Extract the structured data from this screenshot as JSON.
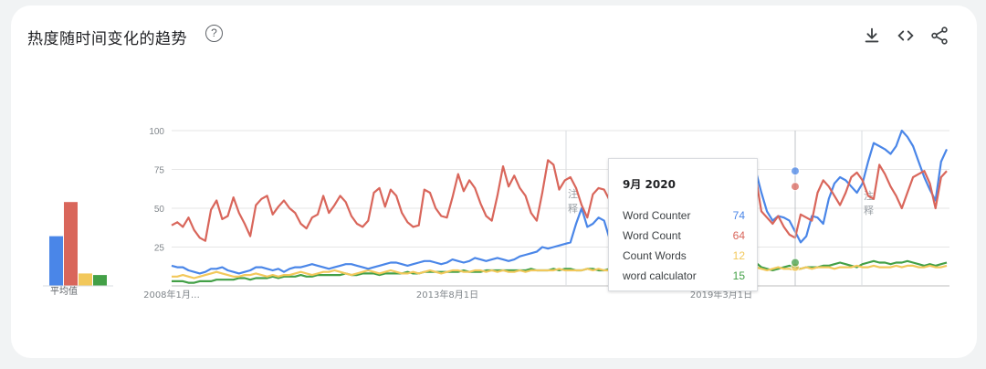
{
  "header": {
    "title": "热度随时间变化的趋势",
    "help_glyph": "?",
    "icons": [
      "download-icon",
      "embed-code-icon",
      "share-icon"
    ]
  },
  "colors": {
    "word_counter": "#4a86e8",
    "word_count": "#d9665b",
    "count_words": "#f2c85b",
    "word_calculator": "#43a047",
    "grid": "#e6e6e6",
    "axis_text": "#80868b"
  },
  "averages": {
    "label": "平均值",
    "values": [
      32,
      54,
      8,
      7
    ]
  },
  "chart_data": {
    "type": "line",
    "x_range": [
      "2008-01",
      "2022-08"
    ],
    "ylim": [
      0,
      100
    ],
    "yticks": [
      25,
      50,
      75,
      100
    ],
    "x_tick_labels": [
      "2008年1月…",
      "2013年8月1日",
      "2019年3月1日"
    ],
    "annotation_marker_label": "注释",
    "series": [
      {
        "name": "Word Counter",
        "key": "word_counter",
        "values": [
          13,
          12,
          12,
          10,
          9,
          8,
          9,
          11,
          11,
          12,
          10,
          9,
          8,
          9,
          10,
          12,
          12,
          11,
          10,
          11,
          9,
          11,
          12,
          12,
          13,
          14,
          13,
          12,
          11,
          12,
          13,
          14,
          14,
          13,
          12,
          11,
          12,
          13,
          14,
          15,
          15,
          14,
          13,
          14,
          15,
          16,
          16,
          15,
          14,
          15,
          17,
          16,
          15,
          16,
          18,
          17,
          16,
          17,
          18,
          17,
          16,
          17,
          19,
          20,
          21,
          22,
          25,
          24,
          25,
          26,
          27,
          28,
          40,
          50,
          38,
          40,
          44,
          42,
          30,
          25,
          48,
          46,
          35,
          30,
          42,
          45,
          48,
          60,
          72,
          70,
          56,
          50,
          54,
          70,
          74,
          70,
          65,
          68,
          78,
          72,
          60,
          55,
          50,
          64,
          74,
          60,
          48,
          42,
          45,
          44,
          42,
          35,
          28,
          32,
          45,
          44,
          40,
          56,
          66,
          70,
          68,
          64,
          60,
          66,
          80,
          92,
          90,
          88,
          85,
          90,
          100,
          96,
          90,
          80,
          70,
          62,
          55,
          80,
          88
        ]
      },
      {
        "name": "Word Count",
        "key": "word_count",
        "values": [
          39,
          41,
          38,
          44,
          36,
          31,
          29,
          49,
          55,
          43,
          45,
          57,
          47,
          40,
          32,
          52,
          56,
          58,
          46,
          51,
          55,
          50,
          47,
          40,
          37,
          44,
          46,
          58,
          47,
          52,
          58,
          54,
          45,
          40,
          38,
          42,
          60,
          63,
          51,
          62,
          58,
          47,
          41,
          38,
          39,
          62,
          60,
          50,
          45,
          44,
          57,
          72,
          61,
          68,
          63,
          53,
          45,
          42,
          58,
          77,
          64,
          71,
          63,
          58,
          47,
          42,
          60,
          81,
          78,
          62,
          68,
          70,
          63,
          52,
          44,
          59,
          63,
          62,
          55,
          40,
          38,
          60,
          62,
          57,
          64,
          74,
          52,
          46,
          57,
          67,
          71,
          60,
          53,
          48,
          38,
          62,
          64,
          56,
          42,
          58,
          60,
          62,
          55,
          52,
          70,
          48,
          44,
          40,
          45,
          38,
          33,
          31,
          46,
          44,
          42,
          60,
          68,
          64,
          58,
          52,
          60,
          70,
          73,
          68,
          58,
          56,
          78,
          72,
          64,
          58,
          50,
          60,
          70,
          72,
          74,
          66,
          50,
          70,
          74
        ]
      },
      {
        "name": "Count Words",
        "key": "count_words",
        "values": [
          6,
          6,
          7,
          6,
          5,
          6,
          7,
          8,
          9,
          8,
          7,
          6,
          6,
          7,
          7,
          8,
          7,
          6,
          7,
          6,
          7,
          7,
          8,
          9,
          8,
          7,
          8,
          9,
          9,
          10,
          9,
          8,
          7,
          8,
          9,
          10,
          9,
          8,
          9,
          10,
          9,
          8,
          8,
          9,
          8,
          9,
          10,
          9,
          8,
          9,
          10,
          10,
          9,
          9,
          10,
          10,
          9,
          10,
          9,
          10,
          9,
          9,
          10,
          9,
          10,
          10,
          10,
          10,
          10,
          11,
          10,
          10,
          10,
          10,
          11,
          10,
          11,
          10,
          10,
          10,
          11,
          12,
          11,
          10,
          11,
          12,
          11,
          12,
          12,
          11,
          12,
          11,
          12,
          11,
          12,
          12,
          12,
          12,
          12,
          11,
          12,
          12,
          13,
          12,
          12,
          11,
          10,
          11,
          12,
          11,
          11,
          10,
          11,
          12,
          11,
          12,
          12,
          12,
          11,
          12,
          12,
          12,
          13,
          12,
          12,
          13,
          12,
          12,
          12,
          13,
          12,
          13,
          13,
          12,
          12,
          13,
          12,
          12,
          13
        ]
      },
      {
        "name": "word calculator",
        "key": "word_calculator",
        "values": [
          3,
          3,
          3,
          2,
          2,
          3,
          3,
          3,
          4,
          4,
          4,
          4,
          5,
          5,
          4,
          5,
          5,
          5,
          6,
          5,
          6,
          6,
          6,
          7,
          6,
          6,
          7,
          7,
          7,
          7,
          7,
          8,
          7,
          7,
          8,
          8,
          8,
          7,
          8,
          8,
          8,
          8,
          9,
          8,
          8,
          9,
          9,
          9,
          9,
          9,
          9,
          9,
          10,
          9,
          9,
          9,
          10,
          10,
          10,
          10,
          10,
          10,
          10,
          10,
          11,
          10,
          10,
          10,
          11,
          10,
          11,
          11,
          10,
          10,
          11,
          11,
          10,
          10,
          11,
          10,
          9,
          10,
          10,
          11,
          10,
          11,
          11,
          12,
          12,
          11,
          12,
          12,
          11,
          12,
          12,
          12,
          12,
          11,
          12,
          12,
          13,
          12,
          12,
          11,
          15,
          12,
          11,
          10,
          11,
          12,
          13,
          12,
          11,
          12,
          12,
          12,
          13,
          13,
          14,
          15,
          14,
          13,
          12,
          14,
          15,
          16,
          15,
          15,
          14,
          15,
          15,
          16,
          15,
          14,
          13,
          14,
          13,
          14,
          15
        ]
      }
    ],
    "tooltip": {
      "date": "9月 2020",
      "rows": [
        {
          "name": "Word Counter",
          "value": 74
        },
        {
          "name": "Word Count",
          "value": 64
        },
        {
          "name": "Count Words",
          "value": 12
        },
        {
          "name": "word calculator",
          "value": 15
        }
      ]
    }
  }
}
